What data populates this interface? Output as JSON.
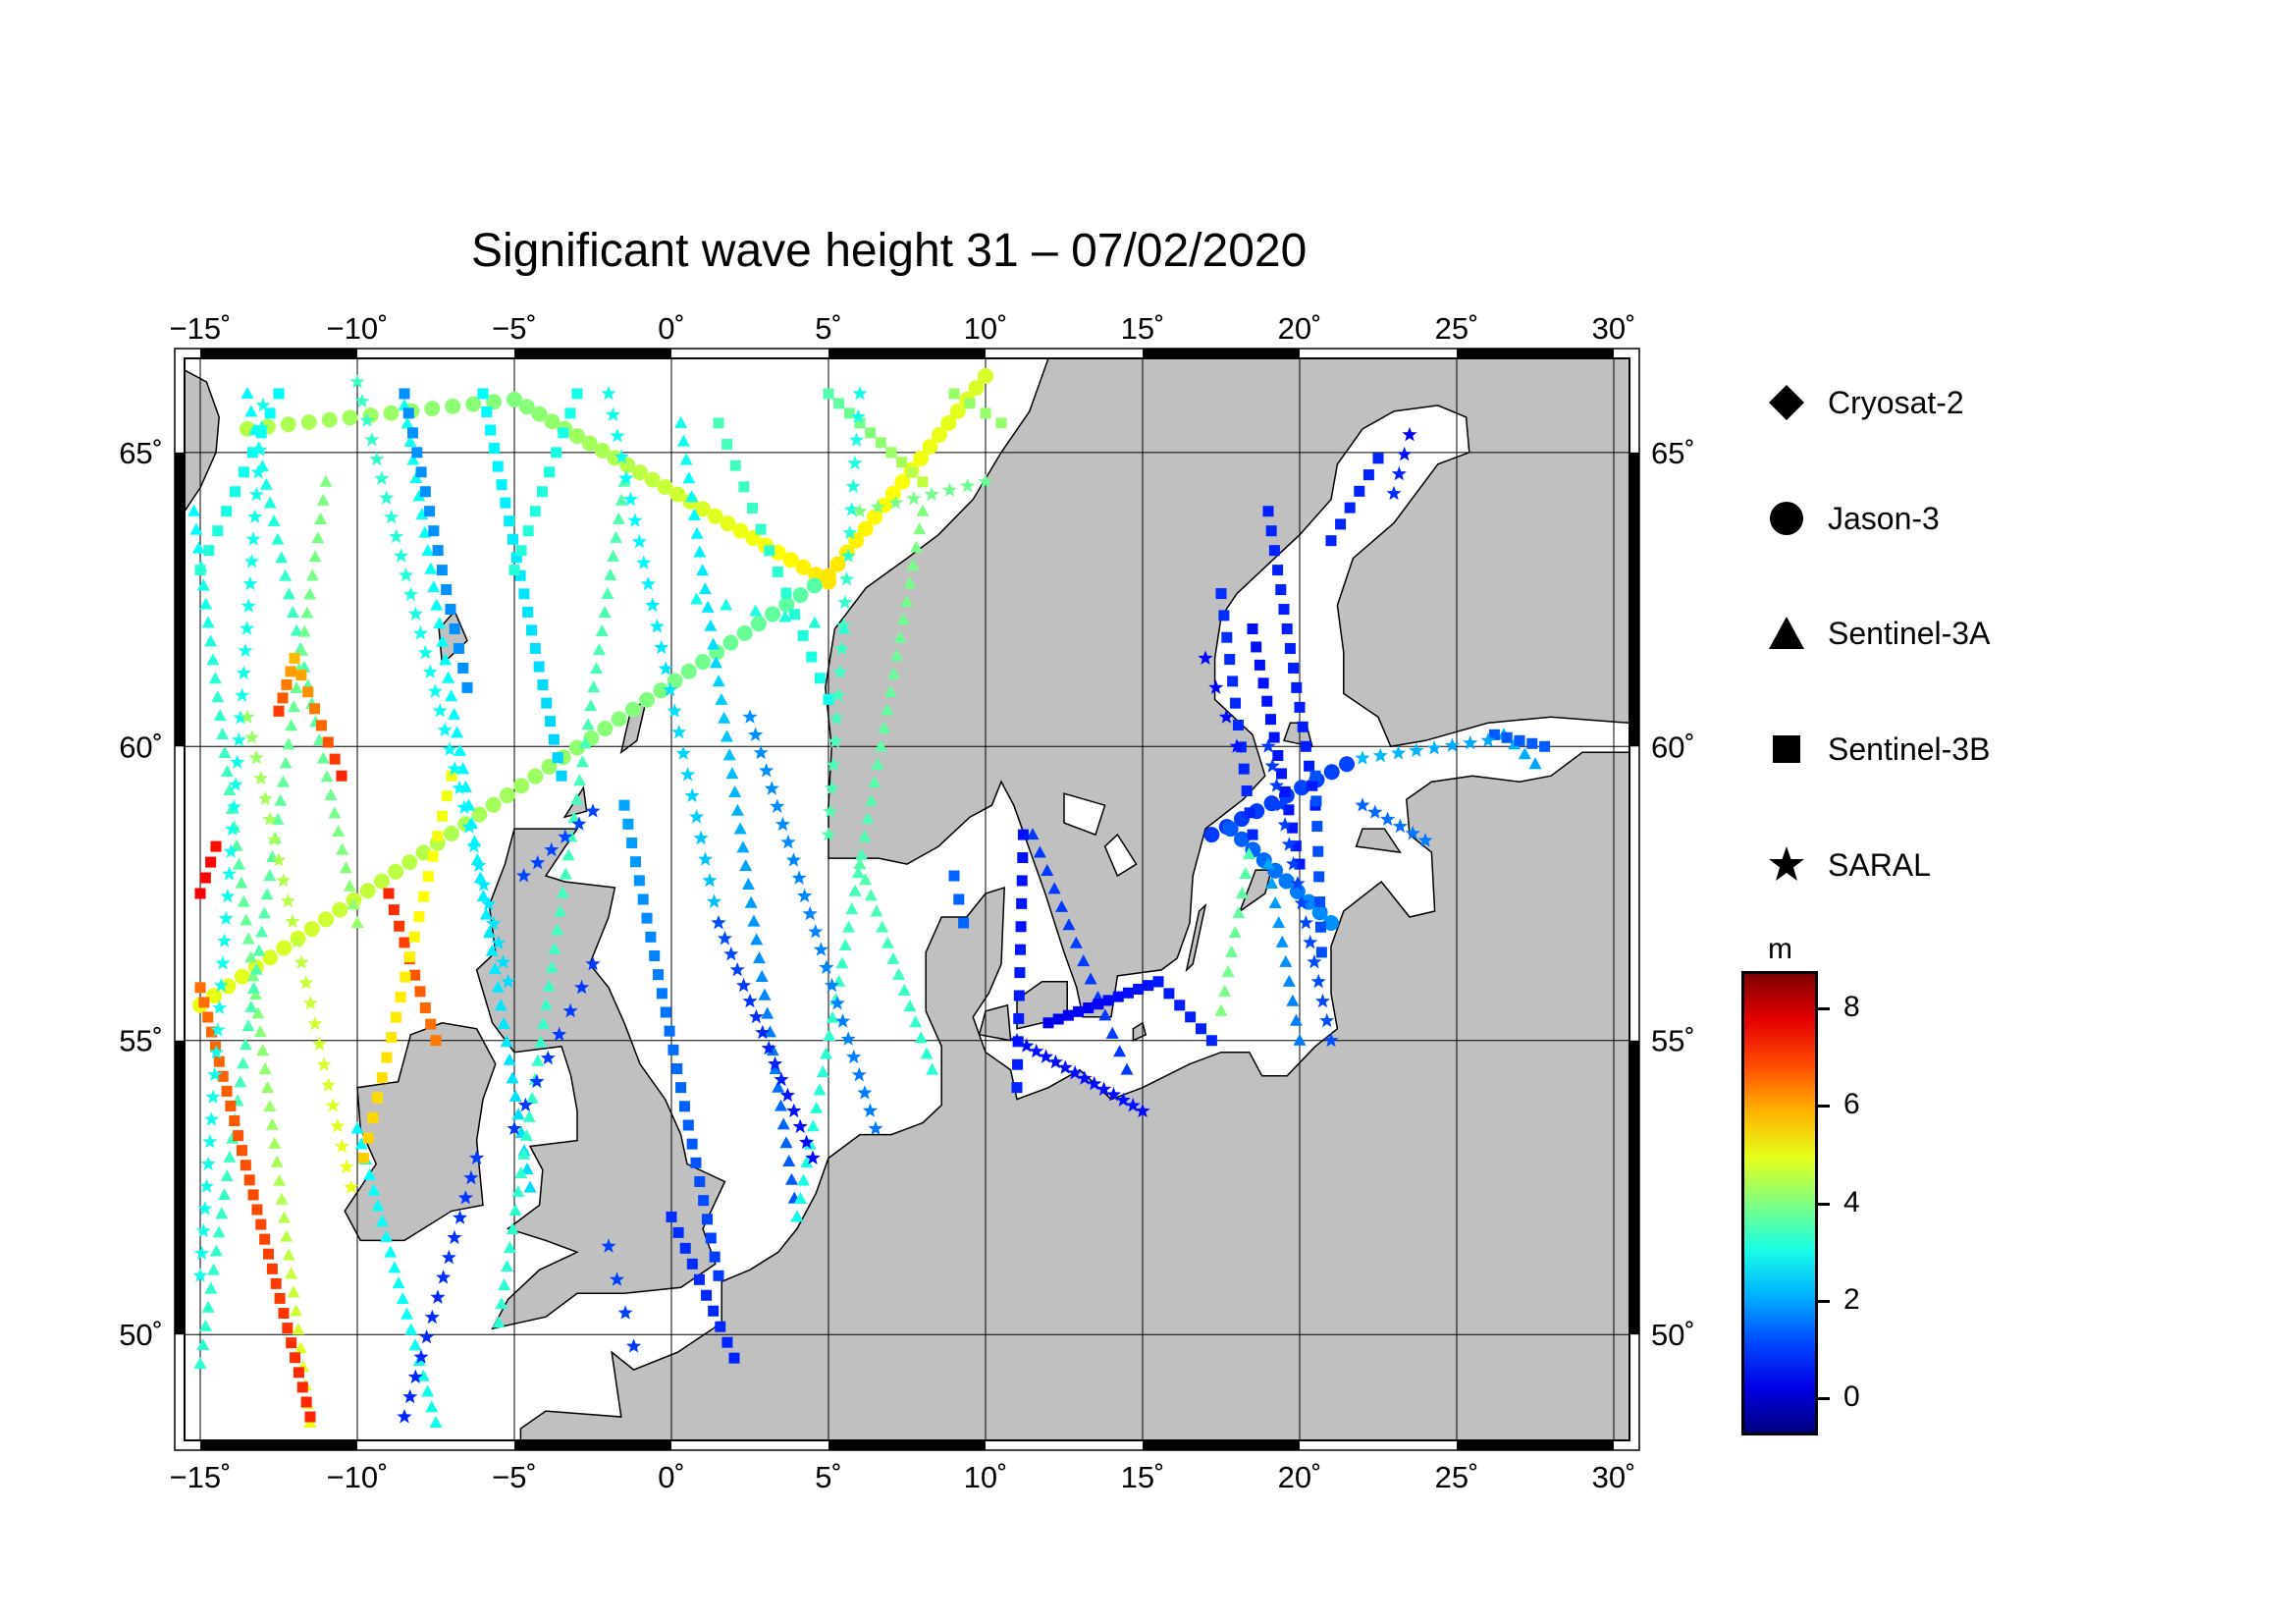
{
  "title": "Significant wave height 31 – 07/02/2020",
  "map": {
    "lon_range": [
      -15.5,
      30.5
    ],
    "lat_range": [
      48.2,
      66.6
    ],
    "lon_ticks": [
      -15,
      -10,
      -5,
      0,
      5,
      10,
      15,
      20,
      25,
      30
    ],
    "lat_ticks": [
      50,
      55,
      60,
      65
    ],
    "lon_tick_labels": [
      "−15˚",
      "−10˚",
      "−5˚",
      "0˚",
      "5˚",
      "10˚",
      "15˚",
      "20˚",
      "25˚",
      "30˚"
    ],
    "lat_tick_labels": [
      "50˚",
      "55˚",
      "60˚",
      "65˚"
    ],
    "grid": true,
    "land_color": "#c0c0c0",
    "sea_color": "#ffffff"
  },
  "legend": {
    "items": [
      {
        "label": "Cryosat-2",
        "icon": "diamond-icon"
      },
      {
        "label": "Jason-3",
        "icon": "circle-icon"
      },
      {
        "label": "Sentinel-3A",
        "icon": "triangle-icon"
      },
      {
        "label": "Sentinel-3B",
        "icon": "square-icon"
      },
      {
        "label": "SARAL",
        "icon": "star-icon"
      }
    ]
  },
  "colorbar": {
    "unit": "m",
    "range": [
      -0.7,
      8.7
    ],
    "ticks": [
      "8",
      "6",
      "4",
      "2",
      "0"
    ],
    "tick_values": [
      8,
      6,
      4,
      2,
      0
    ],
    "colormap": "jet"
  },
  "tracks": [
    {
      "satellite": "Jason-3",
      "symbol": "circle",
      "start": [
        -13.5,
        65.4
      ],
      "end": [
        -5,
        65.9
      ],
      "hs_start": 4.5,
      "hs_end": 4.0,
      "n": 14
    },
    {
      "satellite": "Jason-3",
      "symbol": "circle",
      "start": [
        -5,
        65.9
      ],
      "end": [
        5,
        62.8
      ],
      "hs_start": 4.0,
      "hs_end": 5.4,
      "n": 26
    },
    {
      "satellite": "Jason-3",
      "symbol": "circle",
      "start": [
        -15,
        55.6
      ],
      "end": [
        5,
        62.9
      ],
      "hs_start": 5.0,
      "hs_end": 3.6,
      "n": 46
    },
    {
      "satellite": "Jason-3",
      "symbol": "circle",
      "start": [
        5,
        62.9
      ],
      "end": [
        10,
        66.3
      ],
      "hs_start": 5.4,
      "hs_end": 4.8,
      "n": 18
    },
    {
      "satellite": "Jason-3",
      "symbol": "circle",
      "start": [
        17.2,
        58.5
      ],
      "end": [
        21.5,
        59.7
      ],
      "hs_start": 1.0,
      "hs_end": 1.1,
      "n": 10
    },
    {
      "satellite": "Jason-3",
      "symbol": "circle",
      "start": [
        17.8,
        58.6
      ],
      "end": [
        21,
        57.0
      ],
      "hs_start": 1.3,
      "hs_end": 1.8,
      "n": 10
    },
    {
      "satellite": "Sentinel-3A",
      "symbol": "triangle",
      "start": [
        -15.2,
        64.0
      ],
      "end": [
        -11.5,
        48.5
      ],
      "hs_start": 2.8,
      "hs_end": 5.0,
      "n": 50
    },
    {
      "satellite": "Sentinel-3A",
      "symbol": "triangle",
      "start": [
        -13.5,
        66.0
      ],
      "end": [
        -10,
        57.0
      ],
      "hs_start": 2.8,
      "hs_end": 4.2,
      "n": 30
    },
    {
      "satellite": "Sentinel-3A",
      "symbol": "triangle",
      "start": [
        -15.0,
        49.5
      ],
      "end": [
        -11.0,
        64.5
      ],
      "hs_start": 3.2,
      "hs_end": 4.0,
      "n": 48
    },
    {
      "satellite": "Sentinel-3A",
      "symbol": "triangle",
      "start": [
        -10.0,
        53.5
      ],
      "end": [
        -7.5,
        48.5
      ],
      "hs_start": 2.8,
      "hs_end": 3.0,
      "n": 20
    },
    {
      "satellite": "Sentinel-3A",
      "symbol": "triangle",
      "start": [
        -8.5,
        65.8
      ],
      "end": [
        -4.5,
        52.5
      ],
      "hs_start": 3.0,
      "hs_end": 2.5,
      "n": 44
    },
    {
      "satellite": "Sentinel-3A",
      "symbol": "triangle",
      "start": [
        -5.5,
        50.2
      ],
      "end": [
        -1.5,
        64.5
      ],
      "hs_start": 3.2,
      "hs_end": 3.6,
      "n": 46
    },
    {
      "satellite": "Sentinel-3A",
      "symbol": "triangle",
      "start": [
        0.3,
        65.5
      ],
      "end": [
        4.0,
        52.0
      ],
      "hs_start": 3.0,
      "hs_end": 1.2,
      "n": 44
    },
    {
      "satellite": "Sentinel-3A",
      "symbol": "triangle",
      "start": [
        0.8,
        62.5
      ],
      "end": [
        5.5,
        62.0
      ],
      "hs_start": 3.0,
      "hs_end": 3.2,
      "n": 6
    },
    {
      "satellite": "Sentinel-3A",
      "symbol": "triangle",
      "start": [
        4.0,
        52.0
      ],
      "end": [
        8.0,
        64.0
      ],
      "hs_start": 3.0,
      "hs_end": 4.0,
      "n": 40
    },
    {
      "satellite": "Sentinel-3A",
      "symbol": "triangle",
      "start": [
        6.0,
        58.0
      ],
      "end": [
        8.3,
        54.5
      ],
      "hs_start": 3.6,
      "hs_end": 3.2,
      "n": 14
    },
    {
      "satellite": "Sentinel-3A",
      "symbol": "triangle",
      "start": [
        11.5,
        58.5
      ],
      "end": [
        14.5,
        54.5
      ],
      "hs_start": 1.0,
      "hs_end": 1.0,
      "n": 14
    },
    {
      "satellite": "Sentinel-3A",
      "symbol": "triangle",
      "start": [
        18.5,
        58.5
      ],
      "end": [
        17.5,
        55.5
      ],
      "hs_start": 3.5,
      "hs_end": 4.0,
      "n": 10
    },
    {
      "satellite": "Sentinel-3A",
      "symbol": "triangle",
      "start": [
        19.0,
        58.0
      ],
      "end": [
        20.0,
        55.0
      ],
      "hs_start": 2.0,
      "hs_end": 1.6,
      "n": 10
    },
    {
      "satellite": "Sentinel-3A",
      "symbol": "triangle",
      "start": [
        26.5,
        60.2
      ],
      "end": [
        27.5,
        59.7
      ],
      "hs_start": 2.2,
      "hs_end": 2.0,
      "n": 4
    },
    {
      "satellite": "Sentinel-3B",
      "symbol": "square",
      "start": [
        -15.0,
        55.9
      ],
      "end": [
        -11.5,
        48.6
      ],
      "hs_start": 6.5,
      "hs_end": 7.2,
      "n": 30
    },
    {
      "satellite": "Sentinel-3B",
      "symbol": "square",
      "start": [
        -14.5,
        58.3
      ],
      "end": [
        -15.0,
        57.5
      ],
      "hs_start": 7.4,
      "hs_end": 7.6,
      "n": 4
    },
    {
      "satellite": "Sentinel-3B",
      "symbol": "square",
      "start": [
        -12.5,
        60.6
      ],
      "end": [
        -12.0,
        61.5
      ],
      "hs_start": 7.0,
      "hs_end": 5.8,
      "n": 5
    },
    {
      "satellite": "Sentinel-3B",
      "symbol": "square",
      "start": [
        -12.0,
        61.5
      ],
      "end": [
        -10.5,
        59.5
      ],
      "hs_start": 5.8,
      "hs_end": 7.2,
      "n": 8
    },
    {
      "satellite": "Sentinel-3B",
      "symbol": "square",
      "start": [
        -9.0,
        57.5
      ],
      "end": [
        -7.5,
        55.0
      ],
      "hs_start": 7.2,
      "hs_end": 6.4,
      "n": 10
    },
    {
      "satellite": "Sentinel-3B",
      "symbol": "square",
      "start": [
        -7.0,
        59.5
      ],
      "end": [
        -9.8,
        53.0
      ],
      "hs_start": 5.0,
      "hs_end": 5.6,
      "n": 20
    },
    {
      "satellite": "Sentinel-3B",
      "symbol": "square",
      "start": [
        -12.5,
        66.0
      ],
      "end": [
        -15.0,
        63.0
      ],
      "hs_start": 2.8,
      "hs_end": 3.2,
      "n": 10
    },
    {
      "satellite": "Sentinel-3B",
      "symbol": "square",
      "start": [
        -8.5,
        66.0
      ],
      "end": [
        -6.5,
        61.0
      ],
      "hs_start": 1.8,
      "hs_end": 1.8,
      "n": 16
    },
    {
      "satellite": "Sentinel-3B",
      "symbol": "square",
      "start": [
        -6.0,
        66.0
      ],
      "end": [
        -3.5,
        59.5
      ],
      "hs_start": 2.8,
      "hs_end": 2.4,
      "n": 22
    },
    {
      "satellite": "Sentinel-3B",
      "symbol": "square",
      "start": [
        -5.0,
        63.0
      ],
      "end": [
        -3.0,
        66.0
      ],
      "hs_start": 3.2,
      "hs_end": 3.0,
      "n": 10
    },
    {
      "satellite": "Sentinel-3B",
      "symbol": "square",
      "start": [
        -1.5,
        59.0
      ],
      "end": [
        1.5,
        51.0
      ],
      "hs_start": 2.0,
      "hs_end": 1.0,
      "n": 26
    },
    {
      "satellite": "Sentinel-3B",
      "symbol": "square",
      "start": [
        0.0,
        52.0
      ],
      "end": [
        2.0,
        49.6
      ],
      "hs_start": 0.9,
      "hs_end": 0.8,
      "n": 10
    },
    {
      "satellite": "Sentinel-3B",
      "symbol": "square",
      "start": [
        1.5,
        65.5
      ],
      "end": [
        5.0,
        60.8
      ],
      "hs_start": 3.5,
      "hs_end": 3.0,
      "n": 14
    },
    {
      "satellite": "Sentinel-3B",
      "symbol": "square",
      "start": [
        5.0,
        66.0
      ],
      "end": [
        8.0,
        64.5
      ],
      "hs_start": 3.6,
      "hs_end": 4.6,
      "n": 10
    },
    {
      "satellite": "Sentinel-3B",
      "symbol": "square",
      "start": [
        9.0,
        66.0
      ],
      "end": [
        10.5,
        65.5
      ],
      "hs_start": 4.2,
      "hs_end": 4.2,
      "n": 4
    },
    {
      "satellite": "Sentinel-3B",
      "symbol": "square",
      "start": [
        9.0,
        57.8
      ],
      "end": [
        9.3,
        57.0
      ],
      "hs_start": 1.4,
      "hs_end": 1.4,
      "n": 3
    },
    {
      "satellite": "Sentinel-3B",
      "symbol": "square",
      "start": [
        11.2,
        58.5
      ],
      "end": [
        11.0,
        54.2
      ],
      "hs_start": 0.6,
      "hs_end": 0.8,
      "n": 12
    },
    {
      "satellite": "Sentinel-3B",
      "symbol": "square",
      "start": [
        12.0,
        55.3
      ],
      "end": [
        15.5,
        56.0
      ],
      "hs_start": 0.3,
      "hs_end": 0.7,
      "n": 12
    },
    {
      "satellite": "Sentinel-3B",
      "symbol": "square",
      "start": [
        15.5,
        56.0
      ],
      "end": [
        17.2,
        55.0
      ],
      "hs_start": 0.7,
      "hs_end": 0.8,
      "n": 6
    },
    {
      "satellite": "Sentinel-3B",
      "symbol": "square",
      "start": [
        17.5,
        62.6
      ],
      "end": [
        18.5,
        58.5
      ],
      "hs_start": 0.9,
      "hs_end": 0.8,
      "n": 12
    },
    {
      "satellite": "Sentinel-3B",
      "symbol": "square",
      "start": [
        18.5,
        62.0
      ],
      "end": [
        20.0,
        58.0
      ],
      "hs_start": 0.6,
      "hs_end": 0.7,
      "n": 14
    },
    {
      "satellite": "Sentinel-3B",
      "symbol": "square",
      "start": [
        19.0,
        64.0
      ],
      "end": [
        20.5,
        59.0
      ],
      "hs_start": 0.8,
      "hs_end": 0.7,
      "n": 16
    },
    {
      "satellite": "Sentinel-3B",
      "symbol": "square",
      "start": [
        21.0,
        63.5
      ],
      "end": [
        22.5,
        64.9
      ],
      "hs_start": 0.8,
      "hs_end": 0.8,
      "n": 6
    },
    {
      "satellite": "Sentinel-3B",
      "symbol": "square",
      "start": [
        20.5,
        59.5
      ],
      "end": [
        20.7,
        56.5
      ],
      "hs_start": 1.2,
      "hs_end": 1.2,
      "n": 8
    },
    {
      "satellite": "Sentinel-3B",
      "symbol": "square",
      "start": [
        26.2,
        60.2
      ],
      "end": [
        27.8,
        60.0
      ],
      "hs_start": 1.3,
      "hs_end": 1.3,
      "n": 5
    },
    {
      "satellite": "SARAL",
      "symbol": "star",
      "start": [
        -15.0,
        51.0
      ],
      "end": [
        -13.0,
        65.8
      ],
      "hs_start": 3.0,
      "hs_end": 3.0,
      "n": 40
    },
    {
      "satellite": "SARAL",
      "symbol": "star",
      "start": [
        -13.5,
        60.5
      ],
      "end": [
        -10.2,
        52.5
      ],
      "hs_start": 4.2,
      "hs_end": 5.0,
      "n": 24
    },
    {
      "satellite": "SARAL",
      "symbol": "star",
      "start": [
        -8.5,
        48.6
      ],
      "end": [
        -6.2,
        53.0
      ],
      "hs_start": 0.8,
      "hs_end": 1.0,
      "n": 14
    },
    {
      "satellite": "SARAL",
      "symbol": "star",
      "start": [
        -4.7,
        57.8
      ],
      "end": [
        -2.5,
        58.9
      ],
      "hs_start": 1.1,
      "hs_end": 1.1,
      "n": 6
    },
    {
      "satellite": "SARAL",
      "symbol": "star",
      "start": [
        -10.0,
        66.2
      ],
      "end": [
        -5.2,
        56.0
      ],
      "hs_start": 3.4,
      "hs_end": 2.5,
      "n": 32
    },
    {
      "satellite": "SARAL",
      "symbol": "star",
      "start": [
        -5.0,
        53.5
      ],
      "end": [
        -2.5,
        56.3
      ],
      "hs_start": 1.0,
      "hs_end": 1.0,
      "n": 8
    },
    {
      "satellite": "SARAL",
      "symbol": "star",
      "start": [
        -2.0,
        66.0
      ],
      "end": [
        1.5,
        57.0
      ],
      "hs_start": 3.0,
      "hs_end": 2.2,
      "n": 26
    },
    {
      "satellite": "SARAL",
      "symbol": "star",
      "start": [
        1.5,
        57.0
      ],
      "end": [
        4.5,
        53.0
      ],
      "hs_start": 1.2,
      "hs_end": 0.5,
      "n": 16
    },
    {
      "satellite": "SARAL",
      "symbol": "star",
      "start": [
        -1.2,
        49.8
      ],
      "end": [
        -2.0,
        51.5
      ],
      "hs_start": 1.0,
      "hs_end": 1.1,
      "n": 4
    },
    {
      "satellite": "SARAL",
      "symbol": "star",
      "start": [
        2.5,
        60.5
      ],
      "end": [
        6.5,
        53.5
      ],
      "hs_start": 1.8,
      "hs_end": 1.6,
      "n": 24
    },
    {
      "satellite": "SARAL",
      "symbol": "star",
      "start": [
        6.0,
        66.0
      ],
      "end": [
        5.0,
        58.5
      ],
      "hs_start": 3.0,
      "hs_end": 3.6,
      "n": 20
    },
    {
      "satellite": "SARAL",
      "symbol": "star",
      "start": [
        6.0,
        64.0
      ],
      "end": [
        10.0,
        64.5
      ],
      "hs_start": 4.0,
      "hs_end": 3.8,
      "n": 8
    },
    {
      "satellite": "SARAL",
      "symbol": "star",
      "start": [
        11.0,
        55.0
      ],
      "end": [
        15.0,
        53.8
      ],
      "hs_start": 0.6,
      "hs_end": 0.6,
      "n": 14
    },
    {
      "satellite": "SARAL",
      "symbol": "star",
      "start": [
        17.0,
        61.5
      ],
      "end": [
        18.0,
        60.0
      ],
      "hs_start": 0.4,
      "hs_end": 0.6,
      "n": 4
    },
    {
      "satellite": "SARAL",
      "symbol": "star",
      "start": [
        19.0,
        60.0
      ],
      "end": [
        21.0,
        55.0
      ],
      "hs_start": 1.0,
      "hs_end": 1.2,
      "n": 16
    },
    {
      "satellite": "SARAL",
      "symbol": "star",
      "start": [
        22.0,
        59.8
      ],
      "end": [
        26.0,
        60.1
      ],
      "hs_start": 2.2,
      "hs_end": 2.0,
      "n": 8
    },
    {
      "satellite": "SARAL",
      "symbol": "star",
      "start": [
        22.0,
        59.0
      ],
      "end": [
        24.0,
        58.4
      ],
      "hs_start": 1.4,
      "hs_end": 1.6,
      "n": 6
    },
    {
      "satellite": "SARAL",
      "symbol": "star",
      "start": [
        23.5,
        65.3
      ],
      "end": [
        23.0,
        64.3
      ],
      "hs_start": 0.5,
      "hs_end": 0.9,
      "n": 4
    }
  ]
}
